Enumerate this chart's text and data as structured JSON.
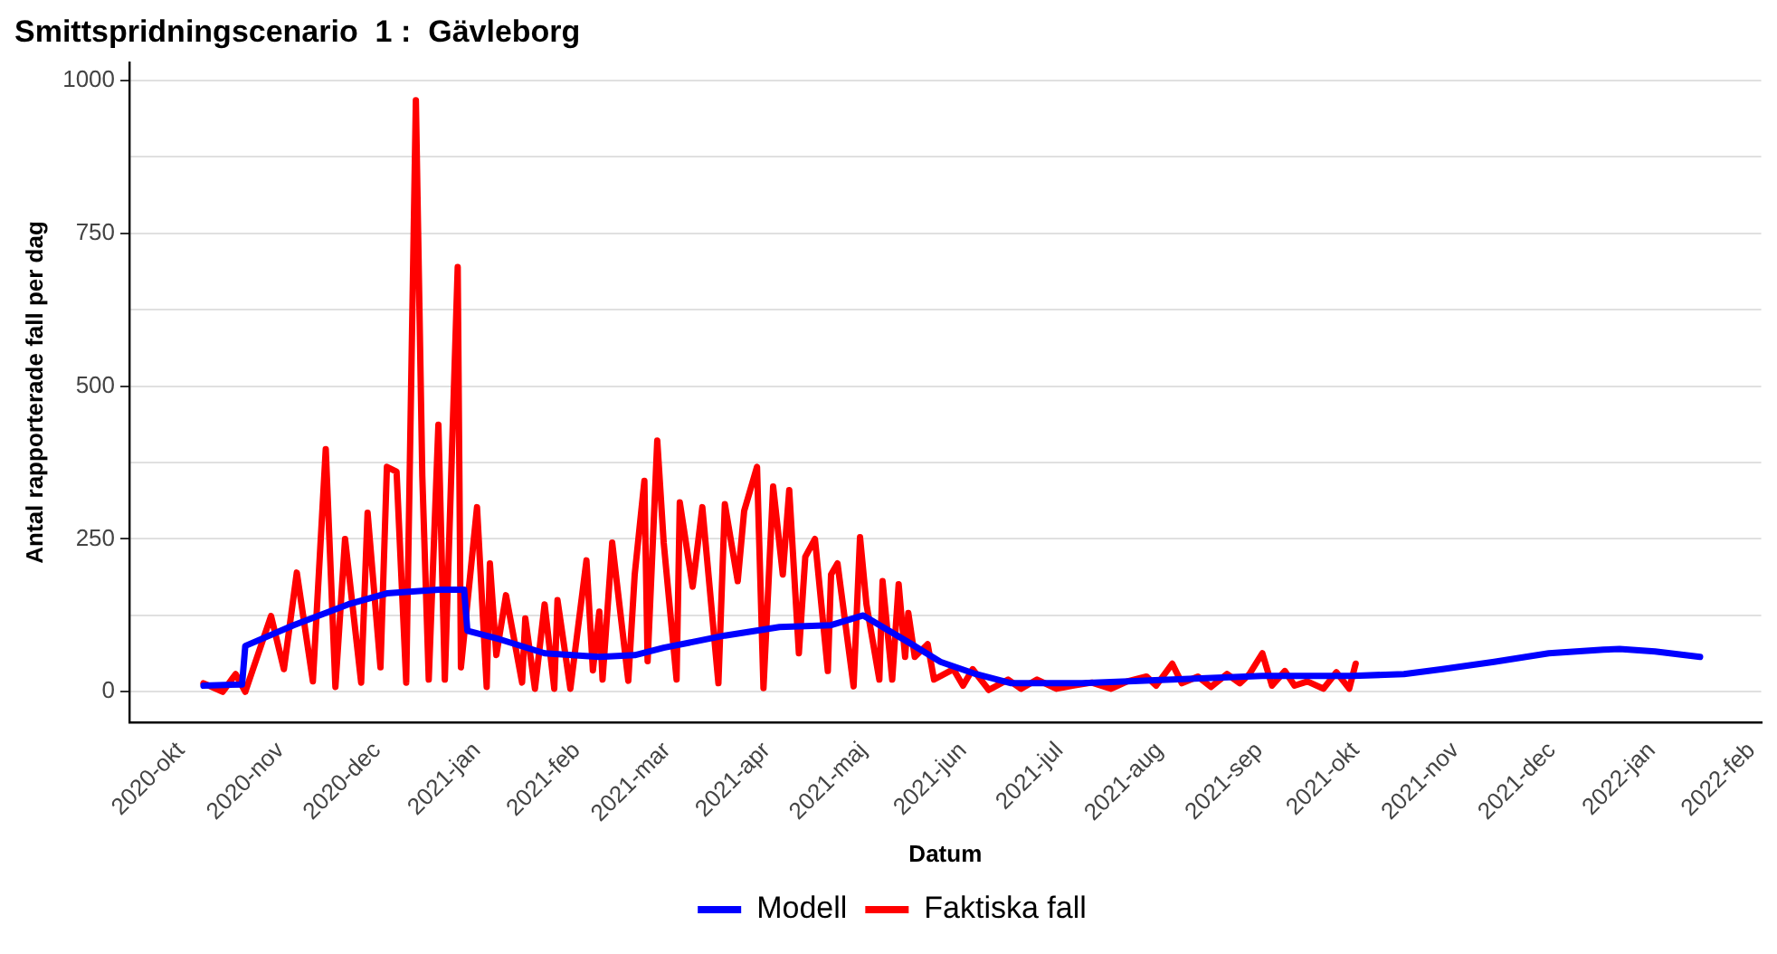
{
  "chart_data": {
    "type": "line",
    "title": "Smittspridningscenario  1 :  Gävleborg",
    "xlabel": "Datum",
    "ylabel": "Antal rapporterade fall per dag",
    "xlim": [
      "2020-09-15",
      "2022-02-04"
    ],
    "xticks": [
      {
        "value": "2020-10-01",
        "label": "2020-okt"
      },
      {
        "value": "2020-11-01",
        "label": "2020-nov"
      },
      {
        "value": "2020-12-01",
        "label": "2020-dec"
      },
      {
        "value": "2021-01-01",
        "label": "2021-jan"
      },
      {
        "value": "2021-02-01",
        "label": "2021-feb"
      },
      {
        "value": "2021-03-01",
        "label": "2021-mar"
      },
      {
        "value": "2021-04-01",
        "label": "2021-apr"
      },
      {
        "value": "2021-05-01",
        "label": "2021-maj"
      },
      {
        "value": "2021-06-01",
        "label": "2021-jun"
      },
      {
        "value": "2021-07-01",
        "label": "2021-jul"
      },
      {
        "value": "2021-08-01",
        "label": "2021-aug"
      },
      {
        "value": "2021-09-01",
        "label": "2021-sep"
      },
      {
        "value": "2021-10-01",
        "label": "2021-okt"
      },
      {
        "value": "2021-11-01",
        "label": "2021-nov"
      },
      {
        "value": "2021-12-01",
        "label": "2021-dec"
      },
      {
        "value": "2022-01-01",
        "label": "2022-jan"
      },
      {
        "value": "2022-02-01",
        "label": "2022-feb"
      }
    ],
    "ylim": [
      -50,
      1030
    ],
    "yticks": [
      0,
      {
        "value": 125,
        "label": null
      },
      250,
      {
        "value": 375,
        "label": null
      },
      500,
      {
        "value": 625,
        "label": null
      },
      750,
      {
        "value": 875,
        "label": null
      },
      1000
    ],
    "grid": "y",
    "legend": "bottom",
    "line_style": "solid",
    "marker": "none",
    "series": [
      {
        "name": "Modell",
        "color": "#0000ff",
        "x": [
          "2020-10-08",
          "2020-10-20",
          "2020-10-21",
          "2020-11-05",
          "2020-11-22",
          "2020-12-04",
          "2020-12-20",
          "2020-12-28",
          "2020-12-29",
          "2021-01-08",
          "2021-01-22",
          "2021-02-08",
          "2021-02-19",
          "2021-02-28",
          "2021-03-19",
          "2021-04-05",
          "2021-04-21",
          "2021-05-01",
          "2021-05-16",
          "2021-05-25",
          "2021-06-05",
          "2021-06-16",
          "2021-07-08",
          "2021-08-05",
          "2021-09-02",
          "2021-09-30",
          "2021-10-16",
          "2021-10-28",
          "2021-11-13",
          "2021-11-30",
          "2021-12-17",
          "2021-12-22",
          "2022-01-02",
          "2022-01-16"
        ],
        "values": [
          10,
          12,
          75,
          109,
          143,
          161,
          167,
          167,
          100,
          86,
          63,
          57,
          60,
          72,
          92,
          106,
          109,
          125,
          78,
          49,
          29,
          14,
          14,
          20,
          26,
          26,
          29,
          37,
          49,
          63,
          69,
          70,
          66,
          57
        ]
      },
      {
        "name": "Faktiska fall",
        "color": "#ff0000",
        "x": [
          "2020-10-08",
          "2020-10-14",
          "2020-10-18",
          "2020-10-21",
          "2020-10-29",
          "2020-11-02",
          "2020-11-06",
          "2020-11-11",
          "2020-11-15",
          "2020-11-18",
          "2020-11-21",
          "2020-11-26",
          "2020-11-28",
          "2020-12-02",
          "2020-12-04",
          "2020-12-07",
          "2020-12-10",
          "2020-12-13",
          "2020-12-15",
          "2020-12-17",
          "2020-12-20",
          "2020-12-22",
          "2020-12-26",
          "2020-12-27",
          "2021-01-01",
          "2021-01-04",
          "2021-01-05",
          "2021-01-07",
          "2021-01-10",
          "2021-01-15",
          "2021-01-16",
          "2021-01-19",
          "2021-01-22",
          "2021-01-25",
          "2021-01-26",
          "2021-01-30",
          "2021-02-04",
          "2021-02-06",
          "2021-02-08",
          "2021-02-09",
          "2021-02-12",
          "2021-02-17",
          "2021-02-19",
          "2021-02-22",
          "2021-02-23",
          "2021-02-26",
          "2021-02-28",
          "2021-03-04",
          "2021-03-05",
          "2021-03-09",
          "2021-03-12",
          "2021-03-17",
          "2021-03-19",
          "2021-03-23",
          "2021-03-25",
          "2021-03-29",
          "2021-03-31",
          "2021-04-03",
          "2021-04-06",
          "2021-04-08",
          "2021-04-11",
          "2021-04-13",
          "2021-04-16",
          "2021-04-20",
          "2021-04-21",
          "2021-04-23",
          "2021-04-28",
          "2021-04-30",
          "2021-05-02",
          "2021-05-06",
          "2021-05-07",
          "2021-05-10",
          "2021-05-12",
          "2021-05-14",
          "2021-05-15",
          "2021-05-17",
          "2021-05-21",
          "2021-05-23",
          "2021-05-29",
          "2021-06-01",
          "2021-06-04",
          "2021-06-09",
          "2021-06-15",
          "2021-06-19",
          "2021-06-24",
          "2021-06-30",
          "2021-07-05",
          "2021-07-11",
          "2021-07-17",
          "2021-07-22",
          "2021-07-28",
          "2021-07-31",
          "2021-08-05",
          "2021-08-08",
          "2021-08-13",
          "2021-08-17",
          "2021-08-22",
          "2021-08-26",
          "2021-08-29",
          "2021-09-02",
          "2021-09-05",
          "2021-09-09",
          "2021-09-12",
          "2021-09-16",
          "2021-09-21",
          "2021-09-25",
          "2021-09-29",
          "2021-10-01"
        ],
        "values": [
          14,
          0,
          29,
          0,
          124,
          37,
          195,
          17,
          397,
          8,
          250,
          15,
          293,
          40,
          368,
          360,
          15,
          968,
          353,
          20,
          437,
          20,
          695,
          40,
          302,
          8,
          210,
          60,
          158,
          15,
          120,
          5,
          143,
          5,
          150,
          5,
          215,
          35,
          131,
          20,
          244,
          18,
          192,
          345,
          50,
          411,
          244,
          20,
          310,
          172,
          302,
          14,
          307,
          181,
          296,
          368,
          6,
          336,
          192,
          330,
          63,
          221,
          250,
          34,
          192,
          210,
          9,
          253,
          143,
          20,
          181,
          20,
          176,
          57,
          129,
          57,
          78,
          20,
          37,
          10,
          37,
          3,
          20,
          5,
          20,
          5,
          10,
          15,
          5,
          17,
          25,
          10,
          46,
          14,
          25,
          8,
          29,
          14,
          29,
          63,
          10,
          34,
          10,
          17,
          5,
          32,
          5,
          46
        ]
      }
    ]
  }
}
